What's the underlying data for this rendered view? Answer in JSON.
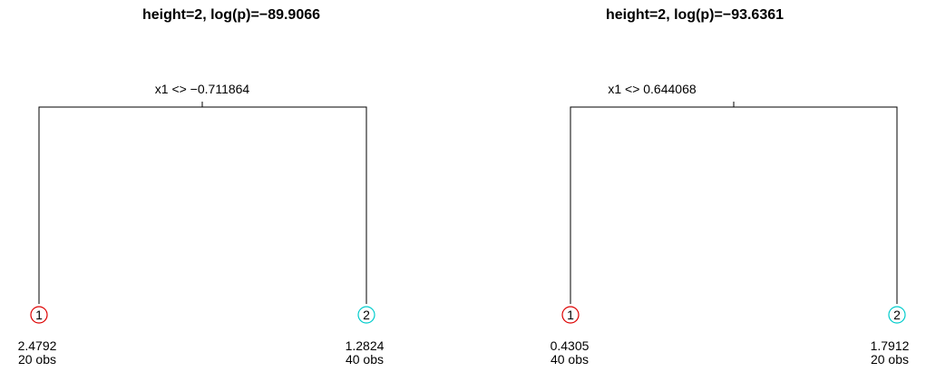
{
  "panels": [
    {
      "title": "height=2, log(p)=−89.9066",
      "split": "x1 <> −0.711864",
      "leaves": [
        {
          "id": "1",
          "value": "2.4792",
          "obs": "20 obs",
          "color": "#dd0000"
        },
        {
          "id": "2",
          "value": "1.2824",
          "obs": "40 obs",
          "color": "#00cccc"
        }
      ]
    },
    {
      "title": "height=2, log(p)=−93.6361",
      "split": "x1 <> 0.644068",
      "leaves": [
        {
          "id": "1",
          "value": "0.4305",
          "obs": "40 obs",
          "color": "#dd0000"
        },
        {
          "id": "2",
          "value": "1.7912",
          "obs": "20 obs",
          "color": "#00cccc"
        }
      ]
    }
  ]
}
